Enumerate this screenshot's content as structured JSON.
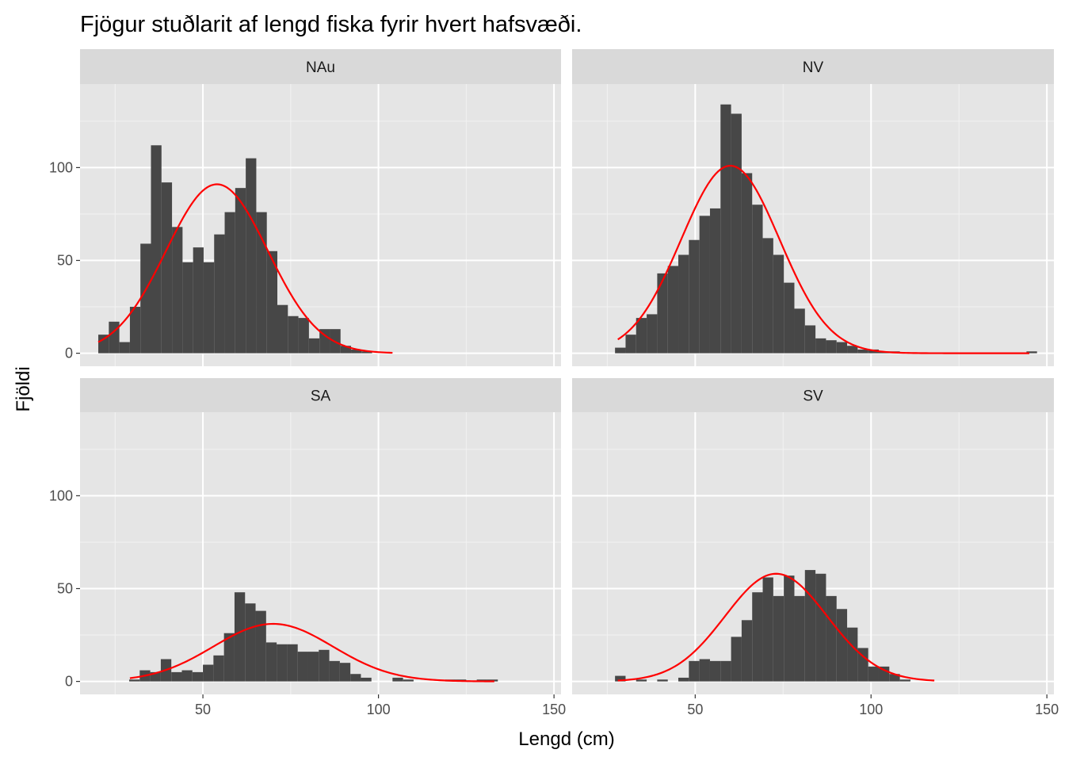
{
  "chart_data": {
    "type": "bar",
    "title": "Fjögur stuðlarit af lengd fiska fyrir hvert hafsvæði.",
    "xlabel": "Lengd (cm)",
    "ylabel": "Fjöldi",
    "xlim": [
      15,
      152
    ],
    "ylim": [
      -7,
      145
    ],
    "x_ticks": [
      50,
      100,
      150
    ],
    "y_ticks": [
      0,
      50,
      100
    ],
    "grid": true,
    "bar_color": "#474747",
    "curve_color": "#ff0000",
    "panel_background": "#e5e5e5",
    "strip_background": "#d9d9d9",
    "panels": [
      {
        "name": "NAu",
        "bin_start": 20.2,
        "bin_width": 3.0,
        "counts": [
          10,
          17,
          6,
          25,
          59,
          112,
          92,
          68,
          49,
          57,
          49,
          64,
          76,
          89,
          105,
          76,
          55,
          26,
          20,
          19,
          8,
          13,
          13,
          4,
          2,
          1,
          0,
          0
        ],
        "curve": {
          "mean": 54,
          "sd": 14.5,
          "peak": 91,
          "x_range": [
            20.2,
            104
          ]
        }
      },
      {
        "name": "NV",
        "bin_start": 27.2,
        "bin_width": 3.0,
        "counts": [
          3,
          10,
          19,
          21,
          43,
          47,
          53,
          61,
          74,
          78,
          134,
          129,
          97,
          80,
          62,
          53,
          38,
          24,
          15,
          8,
          7,
          6,
          4,
          2,
          2,
          1,
          1,
          0,
          0,
          0,
          0,
          0,
          0,
          0,
          0,
          0,
          0,
          0,
          0,
          1
        ],
        "curve": {
          "mean": 60,
          "sd": 14,
          "peak": 101,
          "x_range": [
            28,
            145
          ]
        }
      },
      {
        "name": "SA",
        "bin_start": 29.0,
        "bin_width": 3.0,
        "counts": [
          1,
          6,
          5,
          12,
          5,
          6,
          5,
          9,
          14,
          26,
          48,
          42,
          38,
          21,
          20,
          20,
          16,
          16,
          17,
          11,
          10,
          4,
          2,
          0,
          0,
          2,
          1,
          0,
          0,
          0,
          1,
          1,
          0,
          1,
          1
        ],
        "curve": {
          "mean": 70,
          "sd": 17,
          "peak": 31,
          "x_range": [
            29.2,
            133
          ]
        }
      },
      {
        "name": "SV",
        "bin_start": 27.2,
        "bin_width": 3.0,
        "counts": [
          3,
          0,
          1,
          0,
          1,
          0,
          2,
          11,
          12,
          11,
          11,
          24,
          33,
          48,
          56,
          46,
          57,
          46,
          60,
          58,
          46,
          39,
          29,
          18,
          8,
          8,
          4,
          1
        ],
        "curve": {
          "mean": 73,
          "sd": 14.5,
          "peak": 58,
          "x_range": [
            28,
            118
          ]
        }
      }
    ]
  }
}
